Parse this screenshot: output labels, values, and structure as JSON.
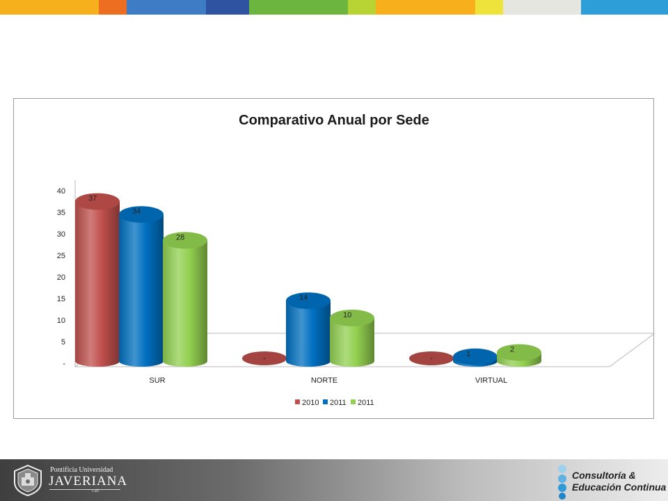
{
  "stripes": [
    {
      "color": "#f5b01c",
      "width": 142
    },
    {
      "color": "#ee6e21",
      "width": 40
    },
    {
      "color": "#3e7dc5",
      "width": 114
    },
    {
      "color": "#2f53a1",
      "width": 62
    },
    {
      "color": "#6cb53f",
      "width": 142
    },
    {
      "color": "#b7d334",
      "width": 40
    },
    {
      "color": "#f7af1c",
      "width": 143
    },
    {
      "color": "#eee33a",
      "width": 40
    },
    {
      "color": "#e6e6e0",
      "width": 112
    },
    {
      "color": "#2d9ed8",
      "width": 125
    }
  ],
  "chart_data": {
    "type": "bar",
    "title": "Comparativo Anual por Sede",
    "categories": [
      "SUR",
      "NORTE",
      "VIRTUAL"
    ],
    "series": [
      {
        "name": "2010",
        "values": [
          37,
          0,
          0
        ],
        "labels": [
          "37",
          "-",
          "-"
        ],
        "color": "#c0504d"
      },
      {
        "name": "2011",
        "values": [
          34,
          14,
          1
        ],
        "labels": [
          "34",
          "14",
          "1"
        ],
        "color": "#0070c0"
      },
      {
        "name": "2011",
        "values": [
          28,
          10,
          2
        ],
        "labels": [
          "28",
          "10",
          "2"
        ],
        "color": "#92d050"
      }
    ],
    "y_ticks": [
      "-",
      "5",
      "10",
      "15",
      "20",
      "25",
      "30",
      "35",
      "40"
    ],
    "ylim": [
      0,
      40
    ],
    "legend_position": "bottom",
    "grid": false
  },
  "footer": {
    "university_line1": "Pontificia Universidad",
    "university_name": "JAVERIANA",
    "university_city": "Cali",
    "brand_line1": "Consultoría &",
    "brand_line2": "Educación Continua"
  }
}
